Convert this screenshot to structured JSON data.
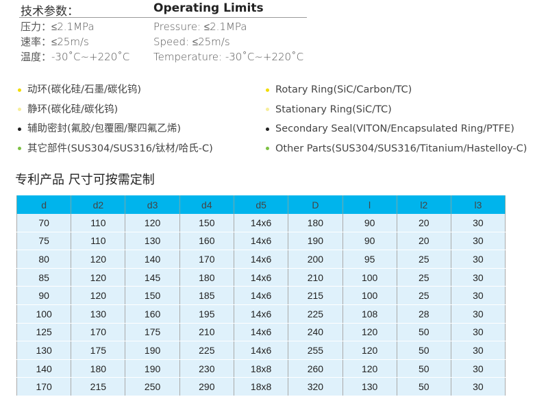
{
  "specs": {
    "cn_title": "技术参数：",
    "en_title": "Operating Limits",
    "cn_items": [
      "压力：≤2.1MPa",
      "速率：≤25m/s",
      "温度：-30˚C~+220˚C"
    ],
    "en_items": [
      "Pressure:  ≤2.1MPa",
      "Speed:  ≤25m/s",
      "Temperature:  -30˚C~+220˚C"
    ]
  },
  "materials": {
    "colors": [
      "#f2dc00",
      "#f6ee9c",
      "#222222",
      "#7cc143"
    ],
    "cn": [
      "动环(碳化硅/石墨/碳化钨)",
      "静环(碳化硅/碳化钨)",
      "辅助密封(氟胶/包覆圈/聚四氟乙烯)",
      "其它部件(SUS304/SUS316/钛材/哈氏-C)"
    ],
    "en": [
      "Rotary Ring(SiC/Carbon/TC)",
      "Stationary Ring(SiC/TC)",
      "Secondary Seal(VITON/Encapsulated Ring/PTFE)",
      "Other Parts(SUS304/SUS316/Titanium/Hastelloy-C)"
    ]
  },
  "table_title": "专利产品  尺寸可按需定制",
  "table": {
    "header_color": "#00b4ec",
    "headers": [
      "d",
      "d2",
      "d3",
      "d4",
      "d5",
      "D",
      "l",
      "l2",
      "l3"
    ],
    "rows": [
      [
        "70",
        "110",
        "120",
        "150",
        "14x6",
        "180",
        "90",
        "20",
        "30"
      ],
      [
        "75",
        "110",
        "130",
        "160",
        "14x6",
        "190",
        "90",
        "20",
        "30"
      ],
      [
        "80",
        "120",
        "140",
        "170",
        "14x6",
        "200",
        "95",
        "25",
        "30"
      ],
      [
        "85",
        "120",
        "145",
        "180",
        "14x6",
        "210",
        "100",
        "25",
        "30"
      ],
      [
        "90",
        "120",
        "150",
        "185",
        "14x6",
        "215",
        "100",
        "25",
        "30"
      ],
      [
        "100",
        "130",
        "160",
        "195",
        "14x6",
        "225",
        "108",
        "28",
        "30"
      ],
      [
        "125",
        "170",
        "175",
        "210",
        "14x6",
        "240",
        "120",
        "50",
        "30"
      ],
      [
        "130",
        "175",
        "190",
        "225",
        "14x6",
        "255",
        "120",
        "50",
        "30"
      ],
      [
        "140",
        "180",
        "190",
        "230",
        "18x8",
        "260",
        "120",
        "50",
        "30"
      ],
      [
        "170",
        "215",
        "250",
        "290",
        "18x8",
        "320",
        "130",
        "50",
        "30"
      ]
    ]
  }
}
